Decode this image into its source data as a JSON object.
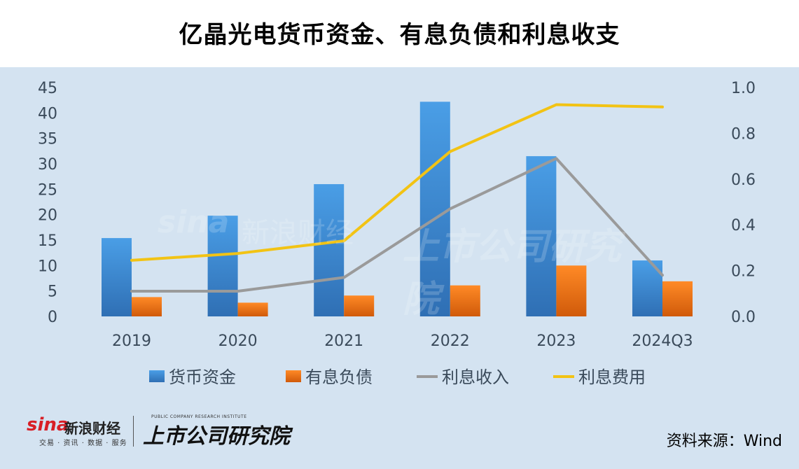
{
  "title": "亿晶光电货币资金、有息负债和利息收支",
  "chart_data": {
    "type": "bar",
    "categories": [
      "2019",
      "2020",
      "2021",
      "2022",
      "2023",
      "2024Q3"
    ],
    "series": [
      {
        "name": "货币资金",
        "type": "bar",
        "axis": "left",
        "color": "#3b8ad9",
        "values": [
          15.4,
          19.8,
          26.0,
          42.2,
          31.5,
          11.0
        ]
      },
      {
        "name": "有息负债",
        "type": "bar",
        "axis": "left",
        "color": "#f07b1a",
        "values": [
          3.8,
          2.7,
          4.1,
          6.1,
          10.0,
          6.9
        ]
      },
      {
        "name": "利息收入",
        "type": "line",
        "axis": "right",
        "color": "#9a9a9a",
        "values": [
          0.11,
          0.11,
          0.17,
          0.47,
          0.69,
          0.18
        ]
      },
      {
        "name": "利息费用",
        "type": "line",
        "axis": "right",
        "color": "#f2c314",
        "values": [
          0.245,
          0.275,
          0.33,
          0.72,
          0.925,
          0.915
        ]
      }
    ],
    "y_left": {
      "min": 0,
      "max": 45,
      "ticks": [
        "0",
        "5",
        "10",
        "15",
        "20",
        "25",
        "30",
        "35",
        "40",
        "45"
      ]
    },
    "y_right": {
      "min": 0,
      "max": 1.0,
      "ticks": [
        "0.0",
        "0.2",
        "0.4",
        "0.6",
        "0.8",
        "1.0"
      ]
    },
    "grid": false,
    "legend": "bottom"
  },
  "watermark": {
    "logo": "sina",
    "brand": "新浪财经",
    "institute": "上市公司研究院"
  },
  "footer": {
    "sina_logo": "sina",
    "sina_name": "新浪财经",
    "sina_tagline": "交易 · 资讯 · 数据 · 服务",
    "institute_cn": "上市公司研究院",
    "institute_en": "PUBLIC COMPANY RESEARCH INSTITUTE",
    "source": "资料来源：Wind"
  }
}
